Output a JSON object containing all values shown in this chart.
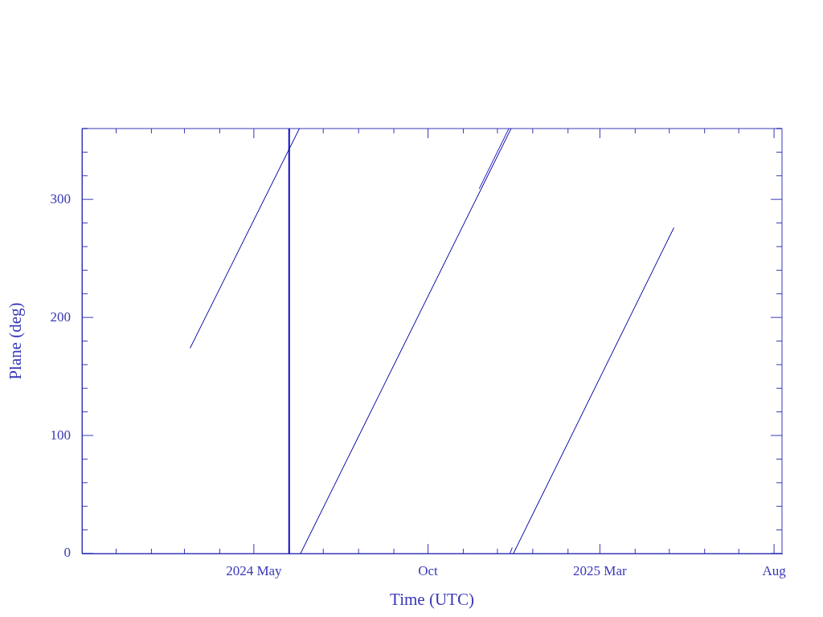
{
  "chart_data": {
    "type": "line",
    "xlabel": "Time (UTC)",
    "ylabel": "Plane (deg)",
    "xlim": [
      "2023-12-02",
      "2025-08-08"
    ],
    "xticks": [
      {
        "value": "2024-01-01",
        "label": null
      },
      {
        "value": "2024-02-01",
        "label": null
      },
      {
        "value": "2024-03-01",
        "label": null
      },
      {
        "value": "2024-04-01",
        "label": null
      },
      {
        "value": "2024-05-01",
        "label": "2024 May"
      },
      {
        "value": "2024-06-01",
        "label": null
      },
      {
        "value": "2024-07-01",
        "label": null
      },
      {
        "value": "2024-08-01",
        "label": null
      },
      {
        "value": "2024-09-01",
        "label": null
      },
      {
        "value": "2024-10-01",
        "label": "Oct"
      },
      {
        "value": "2024-11-01",
        "label": null
      },
      {
        "value": "2024-12-01",
        "label": null
      },
      {
        "value": "2025-01-01",
        "label": null
      },
      {
        "value": "2025-02-01",
        "label": null
      },
      {
        "value": "2025-03-01",
        "label": "2025 Mar"
      },
      {
        "value": "2025-04-01",
        "label": null
      },
      {
        "value": "2025-05-01",
        "label": null
      },
      {
        "value": "2025-06-01",
        "label": null
      },
      {
        "value": "2025-07-01",
        "label": null
      },
      {
        "value": "2025-08-01",
        "label": "Aug"
      }
    ],
    "ylim": [
      0,
      360
    ],
    "yticks": [
      0,
      {
        "value": 20,
        "label": null
      },
      {
        "value": 40,
        "label": null
      },
      {
        "value": 60,
        "label": null
      },
      {
        "value": 80,
        "label": null
      },
      100,
      {
        "value": 120,
        "label": null
      },
      {
        "value": 140,
        "label": null
      },
      {
        "value": 160,
        "label": null
      },
      {
        "value": 180,
        "label": null
      },
      200,
      {
        "value": 220,
        "label": null
      },
      {
        "value": 240,
        "label": null
      },
      {
        "value": 260,
        "label": null
      },
      {
        "value": 280,
        "label": null
      },
      300,
      {
        "value": 320,
        "label": null
      },
      {
        "value": 340,
        "label": null
      },
      {
        "value": 360,
        "label": null
      }
    ],
    "series": [
      {
        "color": "#0000a0",
        "x": [
          "2024-03-06",
          "2024-06-10",
          null,
          "2024-06-11",
          "2024-12-13",
          null,
          "2024-12-15",
          "2025-05-05"
        ],
        "values": [
          174,
          360,
          null,
          0,
          360,
          null,
          0,
          276
        ]
      },
      {
        "color": "#1818c8",
        "x": [
          "2024-11-15",
          "2024-12-11",
          null,
          "2024-12-12",
          "2024-12-14"
        ],
        "values": [
          309,
          360,
          null,
          0,
          5
        ]
      }
    ],
    "ref_lines": [
      {
        "axis": "x",
        "value": "2024-06-01",
        "color": "#1010c0"
      }
    ],
    "grid": false,
    "legend": false,
    "marker": "none",
    "line_style": "solid"
  }
}
